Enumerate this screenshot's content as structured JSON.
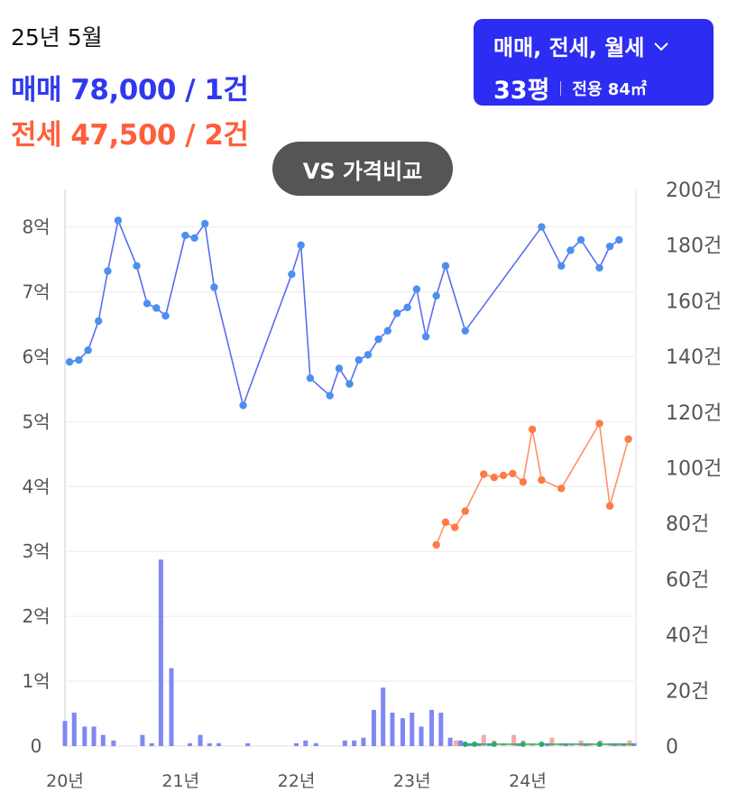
{
  "header": {
    "period": "25년 5월",
    "sale_summary": "매매 78,000 / 1건",
    "jeonse_summary": "전세 47,500 / 2건"
  },
  "filter": {
    "types_label": "매매, 전세, 월세",
    "chevron_icon": "chevron-down-icon",
    "size_label": "33평",
    "area_label": "전용 84㎡"
  },
  "compare_button": "VS 가격비교",
  "colors": {
    "sale": "#5b6cf0",
    "sale_point": "#4a90ef",
    "jeonse": "#ff8f6b",
    "jeonse_point": "#ff7a45",
    "sale_volume": "#7f88f2",
    "jeonse_volume": "#f7a8a8",
    "monthly": "#27ae60",
    "grid": "#ececec"
  },
  "chart_data": {
    "type": "line",
    "y_left": {
      "unit": "억",
      "ticks": [
        "0",
        "1억",
        "2억",
        "3억",
        "4억",
        "5억",
        "6억",
        "7억",
        "8억"
      ],
      "ylim": [
        0,
        8.3
      ]
    },
    "y_right": {
      "unit": "건",
      "ticks": [
        "0",
        "20건",
        "40건",
        "60건",
        "80건",
        "100건",
        "120건",
        "140건",
        "160건",
        "180건",
        "200건"
      ],
      "ylim": [
        0,
        200
      ]
    },
    "x_ticks": [
      {
        "label": "20년",
        "x": 2020.0
      },
      {
        "label": "21년",
        "x": 2021.0
      },
      {
        "label": "22년",
        "x": 2022.0
      },
      {
        "label": "23년",
        "x": 2023.0
      },
      {
        "label": "24년",
        "x": 2024.0
      }
    ],
    "xlim": [
      2020.0,
      2024.92
    ],
    "series": [
      {
        "name": "매매",
        "kind": "price",
        "points": [
          [
            2020.04,
            5.92
          ],
          [
            2020.12,
            5.95
          ],
          [
            2020.2,
            6.1
          ],
          [
            2020.29,
            6.55
          ],
          [
            2020.37,
            7.32
          ],
          [
            2020.46,
            8.1
          ],
          [
            2020.62,
            7.4
          ],
          [
            2020.71,
            6.82
          ],
          [
            2020.79,
            6.75
          ],
          [
            2020.87,
            6.63
          ],
          [
            2021.04,
            7.87
          ],
          [
            2021.12,
            7.83
          ],
          [
            2021.21,
            8.05
          ],
          [
            2021.29,
            7.07
          ],
          [
            2021.54,
            5.25
          ],
          [
            2021.96,
            7.27
          ],
          [
            2022.04,
            7.72
          ],
          [
            2022.12,
            5.67
          ],
          [
            2022.29,
            5.4
          ],
          [
            2022.37,
            5.82
          ],
          [
            2022.46,
            5.58
          ],
          [
            2022.54,
            5.95
          ],
          [
            2022.62,
            6.03
          ],
          [
            2022.71,
            6.27
          ],
          [
            2022.79,
            6.4
          ],
          [
            2022.87,
            6.67
          ],
          [
            2022.96,
            6.76
          ],
          [
            2023.04,
            7.04
          ],
          [
            2023.12,
            6.31
          ],
          [
            2023.21,
            6.94
          ],
          [
            2023.29,
            7.4
          ],
          [
            2023.46,
            6.4
          ],
          [
            2024.12,
            8.0
          ],
          [
            2024.29,
            7.4
          ],
          [
            2024.37,
            7.64
          ],
          [
            2024.46,
            7.8
          ],
          [
            2024.62,
            7.37
          ],
          [
            2024.71,
            7.7
          ],
          [
            2024.79,
            7.8
          ]
        ]
      },
      {
        "name": "전세",
        "kind": "price",
        "points": [
          [
            2023.21,
            3.1
          ],
          [
            2023.29,
            3.45
          ],
          [
            2023.37,
            3.37
          ],
          [
            2023.46,
            3.62
          ],
          [
            2023.62,
            4.19
          ],
          [
            2023.71,
            4.14
          ],
          [
            2023.79,
            4.17
          ],
          [
            2023.87,
            4.2
          ],
          [
            2023.96,
            4.07
          ],
          [
            2024.04,
            4.88
          ],
          [
            2024.12,
            4.1
          ],
          [
            2024.29,
            3.97
          ],
          [
            2024.62,
            4.97
          ],
          [
            2024.71,
            3.7
          ],
          [
            2024.87,
            4.73
          ]
        ]
      },
      {
        "name": "매매 거래량",
        "kind": "volume",
        "points": [
          [
            2020.0,
            9
          ],
          [
            2020.08,
            12
          ],
          [
            2020.17,
            7
          ],
          [
            2020.25,
            7
          ],
          [
            2020.33,
            4
          ],
          [
            2020.42,
            2
          ],
          [
            2020.67,
            4
          ],
          [
            2020.75,
            1
          ],
          [
            2020.83,
            67
          ],
          [
            2020.92,
            28
          ],
          [
            2021.08,
            1
          ],
          [
            2021.17,
            4
          ],
          [
            2021.25,
            1
          ],
          [
            2021.33,
            1
          ],
          [
            2021.58,
            1
          ],
          [
            2022.0,
            1
          ],
          [
            2022.08,
            2
          ],
          [
            2022.17,
            1
          ],
          [
            2022.42,
            2
          ],
          [
            2022.5,
            2
          ],
          [
            2022.58,
            3
          ],
          [
            2022.67,
            13
          ],
          [
            2022.75,
            21
          ],
          [
            2022.83,
            12
          ],
          [
            2022.92,
            10
          ],
          [
            2023.0,
            12
          ],
          [
            2023.08,
            7
          ],
          [
            2023.17,
            13
          ],
          [
            2023.25,
            12
          ],
          [
            2023.33,
            3
          ],
          [
            2023.42,
            2
          ],
          [
            2023.5,
            1
          ],
          [
            2023.58,
            1
          ],
          [
            2023.67,
            1
          ],
          [
            2023.92,
            1
          ],
          [
            2024.17,
            1
          ],
          [
            2024.33,
            1
          ],
          [
            2024.5,
            1
          ],
          [
            2024.75,
            1
          ],
          [
            2024.83,
            1
          ],
          [
            2024.92,
            1
          ]
        ]
      },
      {
        "name": "전세 거래량",
        "kind": "volume",
        "points": [
          [
            2023.38,
            2
          ],
          [
            2023.46,
            1
          ],
          [
            2023.54,
            1
          ],
          [
            2023.62,
            4
          ],
          [
            2023.71,
            2
          ],
          [
            2023.79,
            1
          ],
          [
            2023.88,
            4
          ],
          [
            2023.96,
            2
          ],
          [
            2024.04,
            1
          ],
          [
            2024.12,
            1
          ],
          [
            2024.21,
            3
          ],
          [
            2024.29,
            1
          ],
          [
            2024.38,
            1
          ],
          [
            2024.46,
            2
          ],
          [
            2024.54,
            1
          ],
          [
            2024.63,
            2
          ],
          [
            2024.71,
            1
          ],
          [
            2024.79,
            1
          ],
          [
            2024.88,
            2
          ]
        ]
      },
      {
        "name": "월세",
        "kind": "monthly",
        "points": [
          [
            2023.46,
            0.03
          ],
          [
            2023.54,
            0.02
          ],
          [
            2023.71,
            0.02
          ],
          [
            2023.96,
            0.03
          ],
          [
            2024.12,
            0.02
          ],
          [
            2024.62,
            0.04
          ]
        ]
      }
    ]
  }
}
